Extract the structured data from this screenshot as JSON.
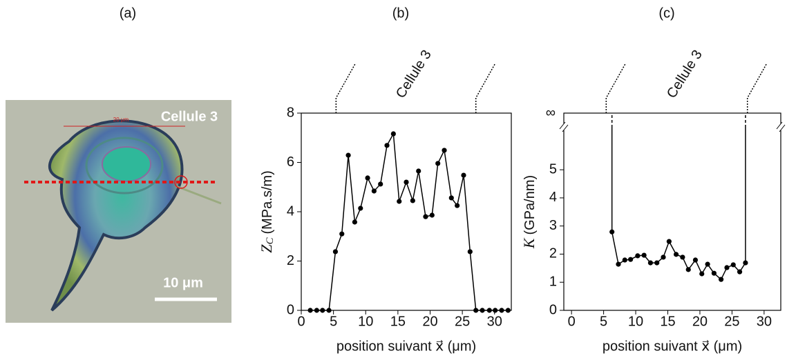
{
  "panel_labels": [
    "(a)",
    "(b)",
    "(c)"
  ],
  "image": {
    "title": "Cellule 3",
    "scale_label": "10 μm",
    "ruler_label": "20 μm"
  },
  "chart_data": [
    {
      "type": "line",
      "annotation": "Cellule 3",
      "y_label_symbol": "Z",
      "y_label_sub": "C",
      "y_label_unit": "(MPa.s/m)",
      "x_label": "position suivant x⃗ (μm)",
      "x": [
        1.4,
        2.4,
        3.3,
        4.3,
        5.3,
        6.3,
        7.3,
        8.3,
        9.2,
        10.3,
        11.3,
        12.3,
        13.3,
        14.3,
        15.2,
        16.3,
        17.3,
        18.2,
        19.3,
        20.3,
        21.2,
        22.2,
        23.3,
        24.2,
        25.2,
        26.2,
        27.1,
        28.1,
        29.2,
        30.1,
        31.1,
        32.1
      ],
      "values": [
        0,
        0,
        0,
        0,
        2.38,
        3.1,
        6.29,
        3.58,
        4.14,
        5.37,
        4.84,
        5.12,
        6.69,
        7.16,
        4.42,
        5.2,
        4.45,
        5.65,
        3.8,
        3.86,
        5.96,
        6.49,
        4.56,
        4.25,
        5.48,
        2.38,
        0,
        0,
        0,
        0,
        0,
        0
      ],
      "color": "#000000",
      "cell_bounds": [
        5.4,
        27.1
      ],
      "xlim": [
        0,
        32.6
      ],
      "xticks": [
        0,
        5,
        10,
        15,
        20,
        25,
        30
      ],
      "ylim": [
        0,
        8
      ],
      "yticks": [
        0,
        2,
        4,
        6,
        8
      ]
    },
    {
      "type": "line",
      "annotation": "Cellule 3",
      "y_label_symbol": "K",
      "y_label_unit": "(GPa/nm)",
      "x_label": "position suivant x⃗ (μm)",
      "x": [
        6.3,
        7.3,
        8.3,
        9.2,
        10.3,
        11.3,
        12.3,
        13.3,
        14.3,
        15.2,
        16.3,
        17.3,
        18.2,
        19.3,
        20.3,
        21.2,
        22.2,
        23.3,
        24.2,
        25.2,
        26.2,
        27.1
      ],
      "values": [
        2.79,
        1.64,
        1.79,
        1.81,
        1.94,
        1.96,
        1.69,
        1.69,
        1.89,
        2.45,
        1.99,
        1.89,
        1.45,
        1.79,
        1.3,
        1.64,
        1.32,
        1.1,
        1.52,
        1.62,
        1.37,
        1.69
      ],
      "color": "#000000",
      "cell_bounds": [
        5.4,
        27.4
      ],
      "break_label": "∞",
      "xlim": [
        -1.2,
        32.6
      ],
      "xticks": [
        0,
        5,
        10,
        15,
        20,
        25,
        30
      ],
      "ylim": [
        0,
        6.5
      ],
      "yticks": [
        0,
        1,
        2,
        3,
        4,
        5
      ]
    }
  ]
}
